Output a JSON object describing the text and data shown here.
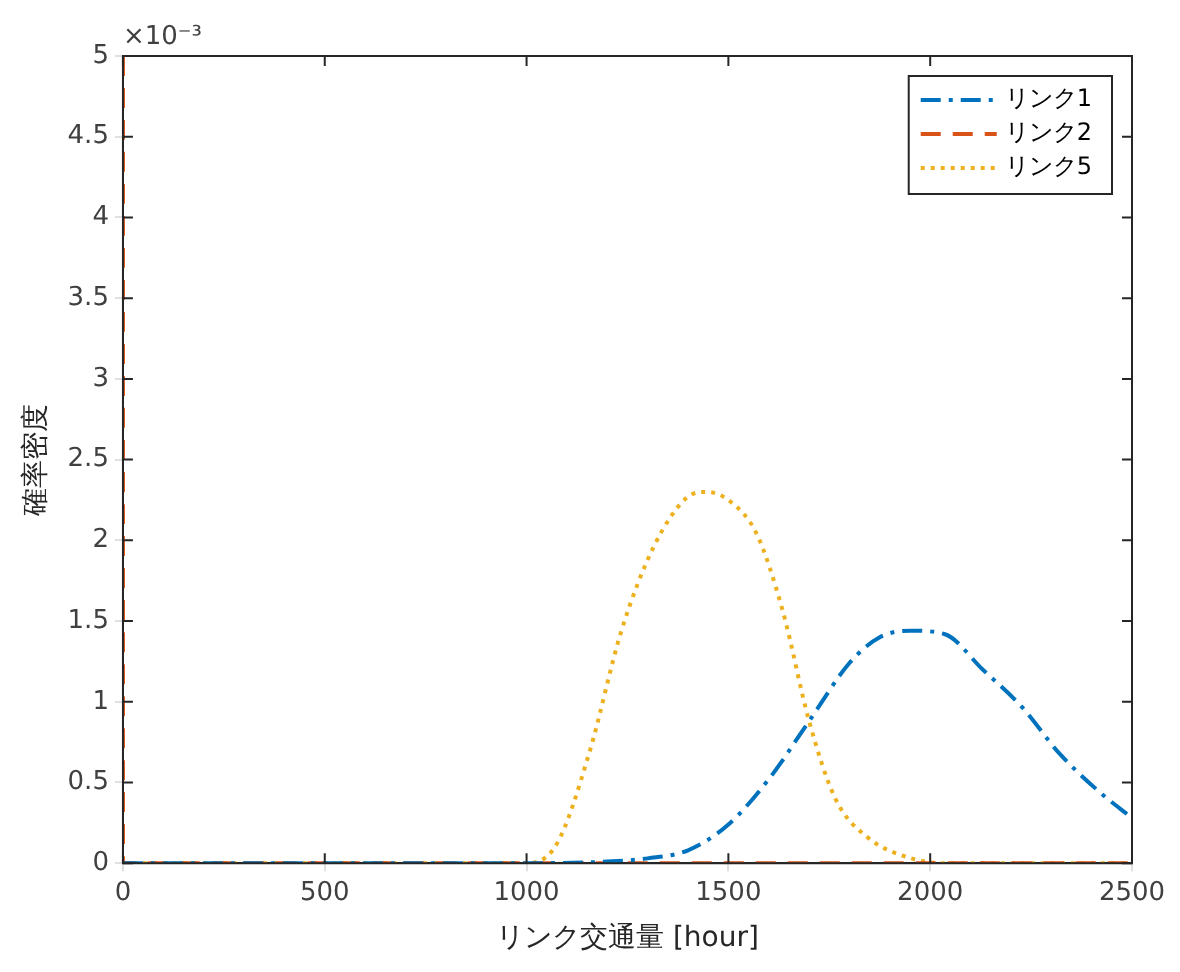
{
  "chart_data": {
    "type": "line",
    "xlabel": "リンク交通量 [hour]",
    "ylabel": "確率密度",
    "annotations": [
      "×10⁻³"
    ],
    "xlim": [
      0,
      2500
    ],
    "xticks": [
      0,
      500,
      1000,
      1500,
      2000,
      2500
    ],
    "ylim": [
      0,
      5
    ],
    "yticks": [
      0,
      0.5,
      1,
      1.5,
      2,
      2.5,
      3,
      3.5,
      4,
      4.5,
      5
    ],
    "grid": false,
    "legend": "top right",
    "marker": "none",
    "series": [
      {
        "name": "リンク1",
        "color": "#0072bd",
        "line_style": "dashdot",
        "x": [
          0,
          1000,
          1200,
          1300,
          1400,
          1500,
          1600,
          1700,
          1800,
          1875,
          1950,
          2035,
          2130,
          2230,
          2320,
          2420,
          2500
        ],
        "values": [
          0,
          0,
          0.01,
          0.03,
          0.08,
          0.24,
          0.52,
          0.88,
          1.24,
          1.4,
          1.44,
          1.42,
          1.2,
          0.96,
          0.68,
          0.44,
          0.28
        ]
      },
      {
        "name": "リンク2",
        "color": "#d95319",
        "line_style": "dashed",
        "x": [
          0,
          0,
          2500
        ],
        "values": [
          5,
          0,
          0
        ]
      },
      {
        "name": "リンク5",
        "color": "#edb120",
        "line_style": "dotted",
        "x": [
          0,
          1000,
          1075,
          1155,
          1235,
          1315,
          1395,
          1445,
          1505,
          1570,
          1635,
          1700,
          1765,
          1845,
          1940,
          2035,
          2500
        ],
        "values": [
          0,
          0,
          0.12,
          0.68,
          1.44,
          1.96,
          2.26,
          2.3,
          2.24,
          2.04,
          1.56,
          0.88,
          0.4,
          0.16,
          0.04,
          0,
          0
        ]
      }
    ]
  }
}
